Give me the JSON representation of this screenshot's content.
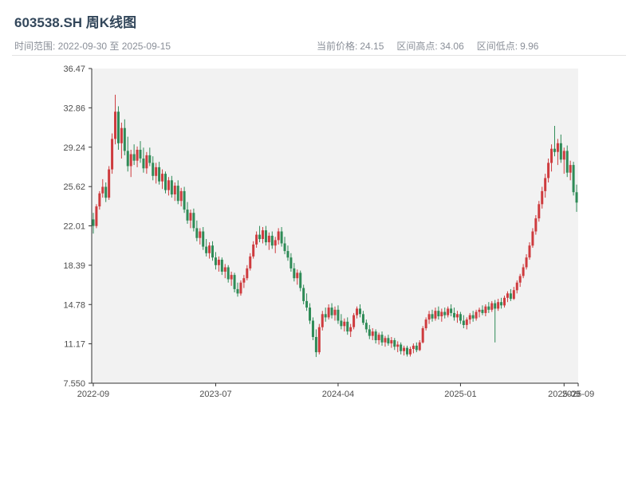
{
  "header": {
    "title": "603538.SH 周K线图",
    "range_label": "时间范围: 2022-09-30 至 2025-09-15",
    "stats": [
      {
        "label": "当前价格:",
        "value": "24.15"
      },
      {
        "label": "区间高点:",
        "value": "34.06"
      },
      {
        "label": "区间低点:",
        "value": "9.96"
      }
    ]
  },
  "chart_data": {
    "type": "candlestick",
    "title": "603538.SH 周K线图",
    "frequency": "weekly",
    "x_start": "2022-09-30",
    "x_end": "2025-09-15",
    "current_price": 24.15,
    "range_high": 34.06,
    "range_low": 9.96,
    "ylim": [
      7.55,
      36.47
    ],
    "grid": false,
    "legend": "none",
    "style": {
      "up_color": "#ce3b3e",
      "down_color": "#2e8b57",
      "plot_bg": "#f2f2f2",
      "axis_color": "#333333",
      "tick_label_color": "#4d4d4d"
    },
    "yticks": [
      {
        "v": 36.47,
        "label": "36.47"
      },
      {
        "v": 32.86,
        "label": "32.86"
      },
      {
        "v": 29.24,
        "label": "29.24"
      },
      {
        "v": 25.62,
        "label": "25.62"
      },
      {
        "v": 22.01,
        "label": "22.01"
      },
      {
        "v": 18.39,
        "label": "18.39"
      },
      {
        "v": 14.78,
        "label": "14.78"
      },
      {
        "v": 11.17,
        "label": "11.17"
      },
      {
        "v": 7.55,
        "label": "7.550"
      }
    ],
    "xticks": [
      {
        "i": 0,
        "label": "2022-09"
      },
      {
        "i": 39,
        "label": "2023-07"
      },
      {
        "i": 78,
        "label": "2024-04"
      },
      {
        "i": 117,
        "label": "2025-01"
      },
      {
        "i": 150,
        "label": "2025-09"
      },
      {
        "i": 155,
        "label": "2025-09"
      }
    ],
    "candles": [
      [
        22.6,
        23.2,
        21.3,
        22.0
      ],
      [
        22.0,
        24.0,
        21.8,
        23.8
      ],
      [
        23.8,
        25.2,
        23.5,
        25.0
      ],
      [
        25.0,
        26.3,
        24.6,
        25.6
      ],
      [
        25.6,
        26.0,
        24.2,
        24.6
      ],
      [
        24.6,
        27.5,
        24.4,
        27.2
      ],
      [
        27.2,
        30.5,
        26.8,
        30.0
      ],
      [
        30.0,
        34.06,
        29.5,
        32.5
      ],
      [
        32.5,
        33.0,
        29.0,
        29.6
      ],
      [
        29.6,
        31.5,
        28.2,
        31.0
      ],
      [
        31.0,
        31.8,
        28.5,
        28.9
      ],
      [
        28.9,
        30.2,
        27.0,
        27.5
      ],
      [
        27.5,
        29.0,
        26.5,
        28.6
      ],
      [
        28.6,
        29.5,
        27.6,
        28.0
      ],
      [
        28.0,
        29.3,
        27.4,
        29.0
      ],
      [
        29.0,
        29.8,
        27.8,
        28.2
      ],
      [
        28.2,
        29.2,
        26.9,
        27.3
      ],
      [
        27.3,
        28.8,
        26.8,
        28.5
      ],
      [
        28.5,
        29.2,
        27.5,
        27.8
      ],
      [
        27.8,
        28.4,
        26.2,
        26.6
      ],
      [
        26.6,
        27.8,
        25.9,
        27.4
      ],
      [
        27.4,
        27.9,
        25.8,
        26.1
      ],
      [
        26.1,
        27.2,
        25.4,
        26.8
      ],
      [
        26.8,
        27.0,
        25.0,
        25.3
      ],
      [
        25.3,
        26.5,
        24.8,
        26.2
      ],
      [
        26.2,
        26.6,
        24.6,
        24.9
      ],
      [
        24.9,
        26.0,
        24.3,
        25.7
      ],
      [
        25.7,
        26.2,
        24.0,
        24.3
      ],
      [
        24.3,
        25.5,
        23.8,
        25.2
      ],
      [
        25.2,
        25.6,
        23.2,
        23.5
      ],
      [
        23.5,
        24.2,
        22.2,
        22.5
      ],
      [
        22.5,
        23.5,
        21.8,
        23.2
      ],
      [
        23.2,
        23.6,
        21.5,
        21.8
      ],
      [
        21.8,
        22.5,
        20.6,
        20.9
      ],
      [
        20.9,
        21.8,
        20.3,
        21.5
      ],
      [
        21.5,
        21.9,
        19.8,
        20.1
      ],
      [
        20.1,
        20.8,
        19.2,
        19.5
      ],
      [
        19.5,
        20.5,
        19.0,
        20.2
      ],
      [
        20.2,
        20.6,
        18.8,
        19.1
      ],
      [
        19.1,
        19.6,
        18.0,
        18.4
      ],
      [
        18.4,
        19.2,
        17.8,
        18.9
      ],
      [
        18.9,
        19.1,
        17.5,
        17.8
      ],
      [
        17.8,
        18.5,
        17.2,
        18.2
      ],
      [
        18.2,
        18.4,
        16.8,
        17.1
      ],
      [
        17.1,
        17.8,
        16.5,
        17.5
      ],
      [
        17.5,
        17.7,
        15.9,
        16.2
      ],
      [
        16.2,
        16.8,
        15.5,
        15.8
      ],
      [
        15.8,
        17.0,
        15.6,
        16.8
      ],
      [
        16.8,
        17.5,
        16.3,
        17.2
      ],
      [
        17.2,
        18.4,
        17.0,
        18.1
      ],
      [
        18.1,
        19.5,
        17.9,
        19.2
      ],
      [
        19.2,
        20.6,
        19.0,
        20.3
      ],
      [
        20.3,
        21.5,
        20.0,
        21.2
      ],
      [
        21.2,
        22.0,
        20.5,
        20.8
      ],
      [
        20.8,
        21.9,
        20.4,
        21.6
      ],
      [
        21.6,
        22.0,
        20.2,
        20.5
      ],
      [
        20.5,
        21.4,
        19.8,
        21.1
      ],
      [
        21.1,
        21.5,
        19.9,
        20.2
      ],
      [
        20.2,
        21.0,
        19.5,
        20.7
      ],
      [
        20.7,
        21.8,
        20.3,
        21.5
      ],
      [
        21.5,
        21.9,
        20.1,
        20.4
      ],
      [
        20.4,
        21.0,
        19.4,
        19.7
      ],
      [
        19.7,
        20.2,
        18.8,
        19.1
      ],
      [
        19.1,
        19.5,
        17.8,
        18.1
      ],
      [
        18.1,
        18.6,
        16.9,
        17.2
      ],
      [
        17.2,
        18.0,
        16.6,
        17.7
      ],
      [
        17.7,
        17.9,
        16.0,
        16.3
      ],
      [
        16.3,
        16.6,
        14.8,
        15.1
      ],
      [
        15.1,
        15.8,
        14.2,
        14.5
      ],
      [
        14.5,
        14.9,
        13.0,
        13.3
      ],
      [
        13.3,
        13.6,
        11.5,
        11.8
      ],
      [
        11.8,
        12.5,
        9.96,
        10.4
      ],
      [
        10.4,
        13.0,
        10.2,
        12.7
      ],
      [
        12.7,
        14.2,
        12.4,
        13.9
      ],
      [
        13.9,
        14.5,
        13.2,
        13.6
      ],
      [
        13.6,
        14.8,
        13.4,
        14.5
      ],
      [
        14.5,
        14.9,
        13.5,
        13.8
      ],
      [
        13.8,
        14.6,
        13.3,
        14.3
      ],
      [
        14.3,
        14.7,
        13.0,
        13.3
      ],
      [
        13.3,
        13.9,
        12.5,
        12.8
      ],
      [
        12.8,
        13.5,
        12.3,
        13.2
      ],
      [
        13.2,
        13.6,
        12.0,
        12.3
      ],
      [
        12.3,
        13.0,
        11.8,
        12.7
      ],
      [
        12.7,
        14.0,
        12.5,
        13.8
      ],
      [
        13.8,
        14.6,
        13.5,
        14.4
      ],
      [
        14.4,
        14.8,
        13.6,
        13.9
      ],
      [
        13.9,
        14.2,
        12.9,
        13.1
      ],
      [
        13.1,
        13.4,
        12.2,
        12.5
      ],
      [
        12.5,
        12.9,
        11.6,
        11.9
      ],
      [
        11.9,
        12.6,
        11.5,
        12.3
      ],
      [
        12.3,
        12.5,
        11.2,
        11.5
      ],
      [
        11.5,
        12.2,
        11.1,
        12.0
      ],
      [
        12.0,
        12.3,
        11.0,
        11.3
      ],
      [
        11.3,
        11.9,
        10.9,
        11.7
      ],
      [
        11.7,
        12.0,
        11.0,
        11.2
      ],
      [
        11.2,
        11.8,
        10.8,
        11.5
      ],
      [
        11.5,
        11.7,
        10.6,
        10.9
      ],
      [
        10.9,
        11.4,
        10.4,
        11.1
      ],
      [
        11.1,
        11.3,
        10.2,
        10.5
      ],
      [
        10.5,
        11.0,
        10.1,
        10.8
      ],
      [
        10.8,
        11.0,
        10.0,
        10.2
      ],
      [
        10.2,
        10.9,
        10.0,
        10.7
      ],
      [
        10.7,
        11.2,
        10.3,
        11.0
      ],
      [
        11.0,
        11.3,
        10.4,
        10.6
      ],
      [
        10.6,
        11.5,
        10.5,
        11.3
      ],
      [
        11.3,
        12.8,
        11.2,
        12.6
      ],
      [
        12.6,
        13.6,
        12.4,
        13.4
      ],
      [
        13.4,
        14.2,
        13.0,
        13.9
      ],
      [
        13.9,
        14.3,
        13.2,
        13.5
      ],
      [
        13.5,
        14.5,
        13.3,
        14.2
      ],
      [
        14.2,
        14.6,
        13.4,
        13.7
      ],
      [
        13.7,
        14.4,
        13.2,
        14.1
      ],
      [
        14.1,
        14.5,
        13.5,
        13.8
      ],
      [
        13.8,
        14.6,
        13.6,
        14.4
      ],
      [
        14.4,
        14.8,
        13.7,
        14.0
      ],
      [
        14.0,
        14.5,
        13.3,
        13.6
      ],
      [
        13.6,
        14.2,
        13.1,
        13.9
      ],
      [
        13.9,
        14.1,
        13.0,
        13.3
      ],
      [
        13.3,
        13.8,
        12.6,
        12.9
      ],
      [
        12.9,
        13.6,
        12.5,
        13.4
      ],
      [
        13.4,
        14.0,
        13.0,
        13.8
      ],
      [
        13.8,
        14.2,
        13.2,
        13.5
      ],
      [
        13.5,
        14.3,
        13.3,
        14.1
      ],
      [
        14.1,
        14.5,
        13.6,
        14.3
      ],
      [
        14.3,
        14.7,
        13.8,
        14.0
      ],
      [
        14.0,
        14.8,
        13.7,
        14.6
      ],
      [
        14.6,
        15.0,
        14.0,
        14.3
      ],
      [
        14.3,
        15.1,
        14.1,
        14.9
      ],
      [
        14.9,
        15.2,
        11.3,
        14.4
      ],
      [
        14.4,
        15.3,
        14.2,
        15.0
      ],
      [
        15.0,
        15.4,
        14.4,
        14.7
      ],
      [
        14.7,
        15.6,
        14.5,
        15.4
      ],
      [
        15.4,
        16.0,
        15.0,
        15.8
      ],
      [
        15.8,
        16.2,
        15.1,
        15.3
      ],
      [
        15.3,
        16.4,
        15.2,
        16.1
      ],
      [
        16.1,
        17.0,
        15.8,
        16.8
      ],
      [
        16.8,
        17.6,
        16.4,
        17.4
      ],
      [
        17.4,
        18.5,
        17.2,
        18.2
      ],
      [
        18.2,
        19.4,
        18.0,
        19.1
      ],
      [
        19.1,
        20.5,
        18.9,
        20.2
      ],
      [
        20.2,
        21.8,
        20.0,
        21.5
      ],
      [
        21.5,
        23.0,
        21.2,
        22.7
      ],
      [
        22.7,
        24.3,
        22.4,
        24.0
      ],
      [
        24.0,
        25.6,
        23.6,
        25.2
      ],
      [
        25.2,
        26.8,
        24.6,
        26.4
      ],
      [
        26.4,
        28.2,
        26.0,
        27.8
      ],
      [
        27.8,
        29.5,
        27.0,
        29.1
      ],
      [
        29.1,
        31.2,
        28.4,
        28.8
      ],
      [
        28.8,
        30.0,
        27.6,
        29.6
      ],
      [
        29.6,
        30.4,
        27.8,
        28.1
      ],
      [
        28.1,
        29.2,
        26.8,
        28.9
      ],
      [
        28.9,
        29.4,
        26.5,
        26.9
      ],
      [
        26.9,
        28.0,
        26.2,
        27.6
      ],
      [
        27.6,
        27.9,
        24.8,
        25.1
      ],
      [
        25.1,
        25.8,
        23.3,
        24.15
      ]
    ]
  }
}
